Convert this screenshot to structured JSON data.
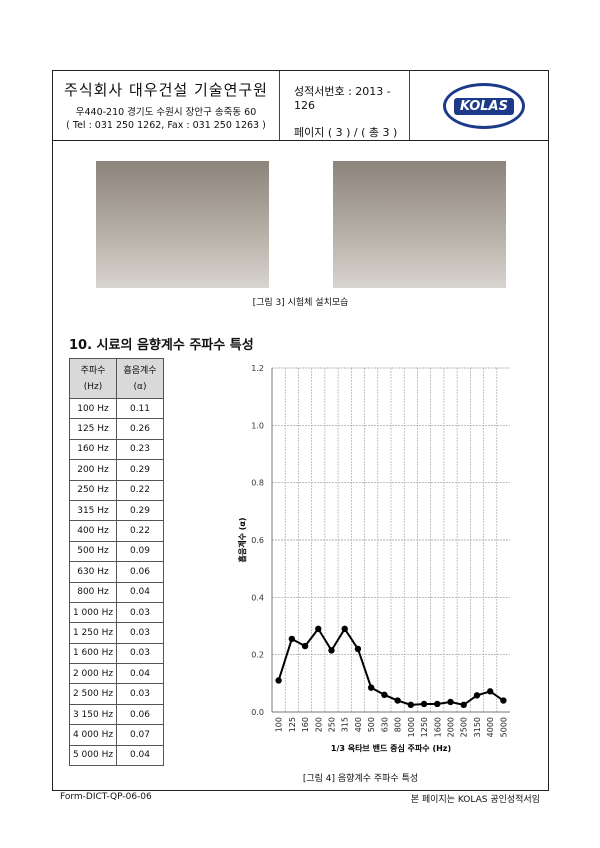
{
  "header": {
    "org": "주식회사 대우건설 기술연구원",
    "address": "우440-210 경기도 수원시 장안구 송죽동 60",
    "contact": "( Tel : 031 250 1262, Fax : 031 250 1263 )",
    "report_no": "성적서번호 : 2013 - 126",
    "page": "페이지 ( 3 ) / ( 총 3 )",
    "logo_text": "KOLAS"
  },
  "figure3_caption": "[그림 3] 시험체 설치모습",
  "section_title": "10. 시료의 음향계수 주파수 특성",
  "table": {
    "headers": [
      [
        "주파수",
        "(Hz)"
      ],
      [
        "흡음계수",
        "(α)"
      ]
    ],
    "rows": [
      [
        "100 Hz",
        "0.11"
      ],
      [
        "125 Hz",
        "0.26"
      ],
      [
        "160 Hz",
        "0.23"
      ],
      [
        "200 Hz",
        "0.29"
      ],
      [
        "250 Hz",
        "0.22"
      ],
      [
        "315 Hz",
        "0.29"
      ],
      [
        "400 Hz",
        "0.22"
      ],
      [
        "500 Hz",
        "0.09"
      ],
      [
        "630 Hz",
        "0.06"
      ],
      [
        "800 Hz",
        "0.04"
      ],
      [
        "1 000 Hz",
        "0.03"
      ],
      [
        "1 250 Hz",
        "0.03"
      ],
      [
        "1 600 Hz",
        "0.03"
      ],
      [
        "2 000 Hz",
        "0.04"
      ],
      [
        "2 500 Hz",
        "0.03"
      ],
      [
        "3 150 Hz",
        "0.06"
      ],
      [
        "4 000 Hz",
        "0.07"
      ],
      [
        "5 000 Hz",
        "0.04"
      ]
    ]
  },
  "chart_data": {
    "type": "line",
    "xlabel": "1/3 옥타브 밴드 중심 주파수 (Hz)",
    "ylabel": "흡음계수 (α)",
    "ylim": [
      0,
      1.2
    ],
    "yticks": [
      "0.0",
      "0.2",
      "0.4",
      "0.6",
      "0.8",
      "1.0",
      "1.2"
    ],
    "grid": true,
    "categories": [
      "100",
      "125",
      "160",
      "200",
      "250",
      "315",
      "400",
      "500",
      "630",
      "800",
      "1000",
      "1250",
      "1600",
      "2000",
      "2500",
      "3150",
      "4000",
      "5000"
    ],
    "values": [
      0.11,
      0.255,
      0.23,
      0.29,
      0.215,
      0.29,
      0.22,
      0.085,
      0.06,
      0.04,
      0.025,
      0.028,
      0.028,
      0.035,
      0.025,
      0.058,
      0.072,
      0.04
    ],
    "color": "#000000"
  },
  "figure4_caption": "[그림 4] 음향계수 주파수 특성",
  "footer": {
    "left": "Form-DICT-QP-06-06",
    "right": "본 페이지는 KOLAS 공인성적서임"
  }
}
